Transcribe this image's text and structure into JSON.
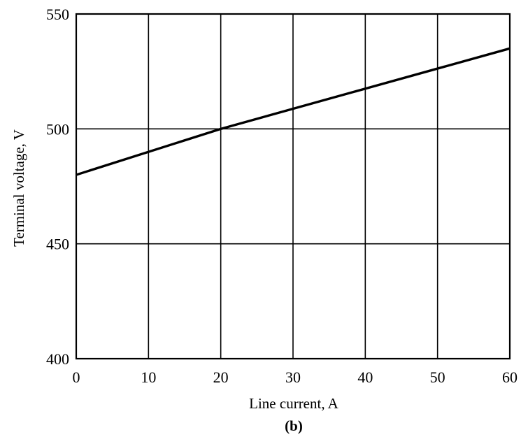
{
  "chart_data": {
    "type": "line",
    "xlabel": "Line current, A",
    "ylabel": "Terminal voltage, V",
    "panel_label": "(b)",
    "xlim": [
      0,
      60
    ],
    "ylim": [
      400,
      550
    ],
    "x_ticks": [
      0,
      10,
      20,
      30,
      40,
      50,
      60
    ],
    "y_ticks": [
      400,
      450,
      500,
      550
    ],
    "grid": true,
    "series": [
      {
        "x": [
          0,
          20,
          60
        ],
        "y": [
          480,
          500,
          535
        ]
      }
    ]
  }
}
